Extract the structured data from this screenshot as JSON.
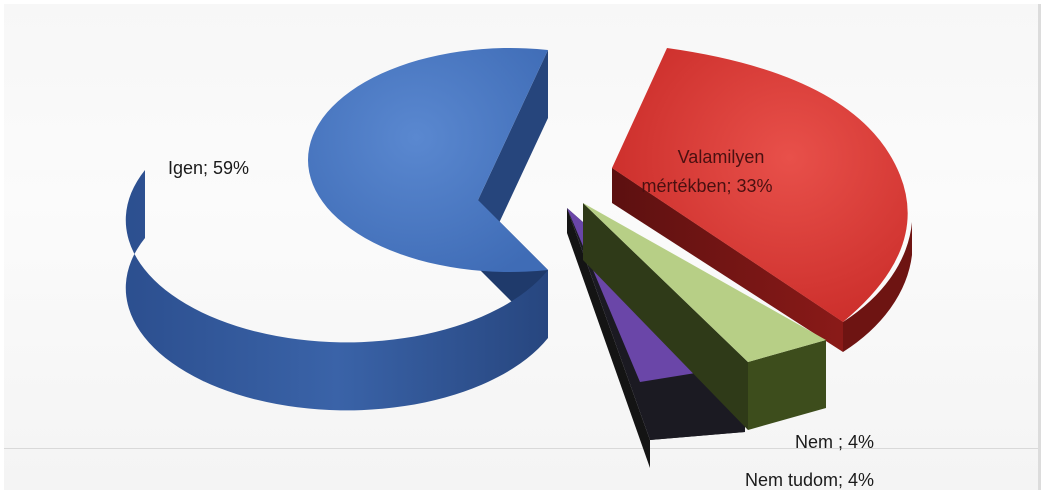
{
  "chart_data": {
    "type": "pie",
    "title": "",
    "style": "3d-exploded",
    "slices": [
      {
        "label": "Igen",
        "value": 59,
        "display": "Igen; 59%",
        "color": "#4a78c4"
      },
      {
        "label": "Valamilyen mértékben",
        "value": 33,
        "display_line1": "Valamilyen",
        "display_line2": "mértékben; 33%",
        "color": "#d93a36"
      },
      {
        "label": "Nem",
        "value": 4,
        "display": "Nem ; 4%",
        "color": "#b7cf86"
      },
      {
        "label": "Nem tudom",
        "value": 4,
        "display": "Nem tudom; 4%",
        "color": "#6a46a8"
      }
    ]
  }
}
